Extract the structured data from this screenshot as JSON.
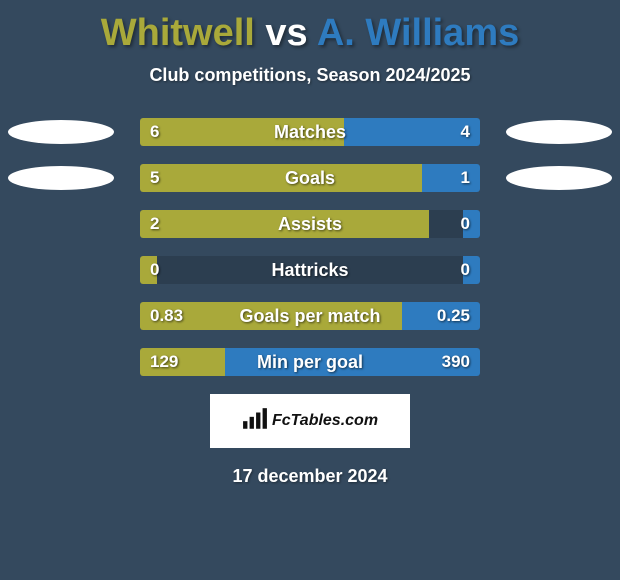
{
  "title": {
    "player1": "Whitwell",
    "vs": "vs",
    "player2": "A. Williams",
    "player1_color": "#a9a93a",
    "player2_color": "#2e7bbf"
  },
  "subtitle": "Club competitions, Season 2024/2025",
  "colors": {
    "left_fill": "#a9a93a",
    "right_fill": "#2e7bbf",
    "track": "#2c3e50",
    "background": "#34495e",
    "ellipse": "#ffffff",
    "text": "#ffffff"
  },
  "stats": [
    {
      "label": "Matches",
      "left_val": "6",
      "right_val": "4",
      "left_pct": 60,
      "right_pct": 40,
      "show_ellipses": true
    },
    {
      "label": "Goals",
      "left_val": "5",
      "right_val": "1",
      "left_pct": 83,
      "right_pct": 17,
      "show_ellipses": true
    },
    {
      "label": "Assists",
      "left_val": "2",
      "right_val": "0",
      "left_pct": 85,
      "right_pct": 5,
      "show_ellipses": false
    },
    {
      "label": "Hattricks",
      "left_val": "0",
      "right_val": "0",
      "left_pct": 5,
      "right_pct": 5,
      "show_ellipses": false
    },
    {
      "label": "Goals per match",
      "left_val": "0.83",
      "right_val": "0.25",
      "left_pct": 77,
      "right_pct": 23,
      "show_ellipses": false
    },
    {
      "label": "Min per goal",
      "left_val": "129",
      "right_val": "390",
      "left_pct": 25,
      "right_pct": 75,
      "show_ellipses": false
    }
  ],
  "brand": "FcTables.com",
  "date": "17 december 2024"
}
